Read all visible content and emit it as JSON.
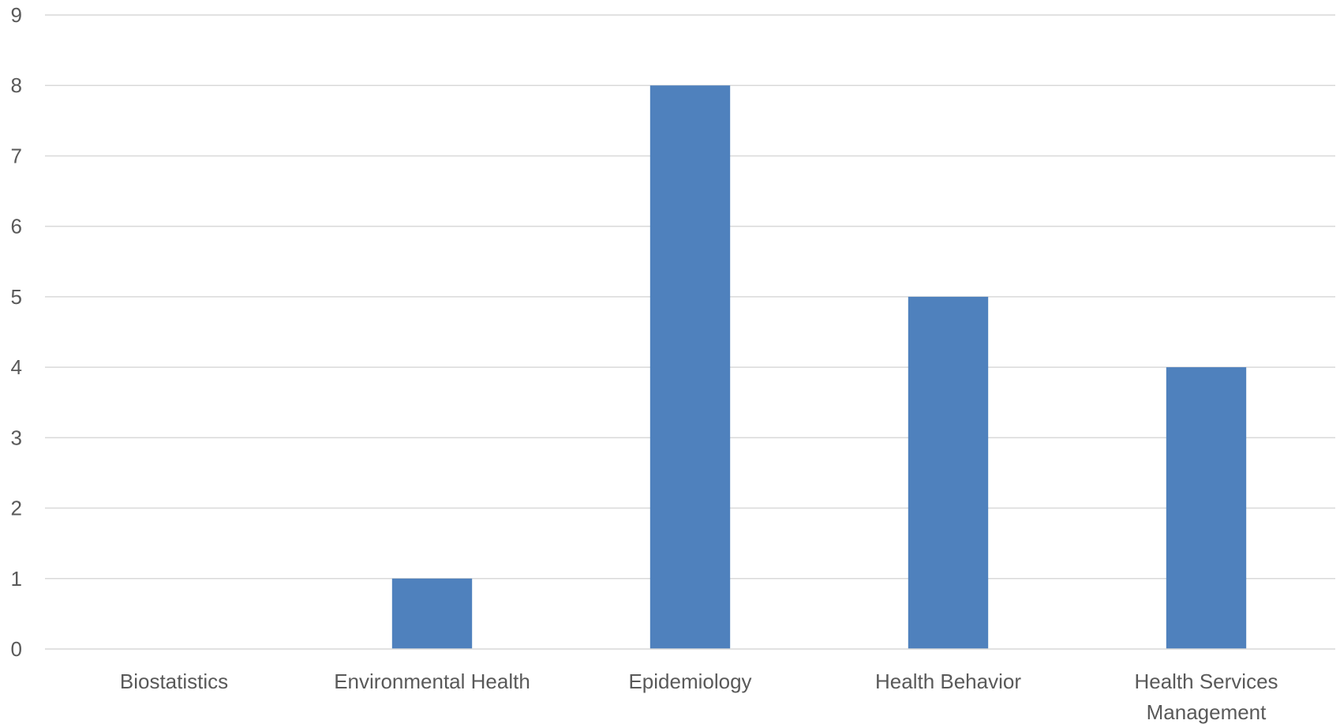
{
  "chart_data": {
    "type": "bar",
    "categories": [
      [
        "Biostatistics"
      ],
      [
        "Environmental Health"
      ],
      [
        "Epidemiology"
      ],
      [
        "Health Behavior"
      ],
      [
        "Health Services",
        "Management"
      ]
    ],
    "values": [
      0,
      1,
      8,
      5,
      4
    ],
    "ylim": [
      0,
      9
    ],
    "yticks": [
      0,
      1,
      2,
      3,
      4,
      5,
      6,
      7,
      8,
      9
    ],
    "grid": true,
    "legend": "none",
    "colors": {
      "bar": "#4f81bd",
      "grid": "#d9d9d9",
      "text": "#595959"
    }
  }
}
